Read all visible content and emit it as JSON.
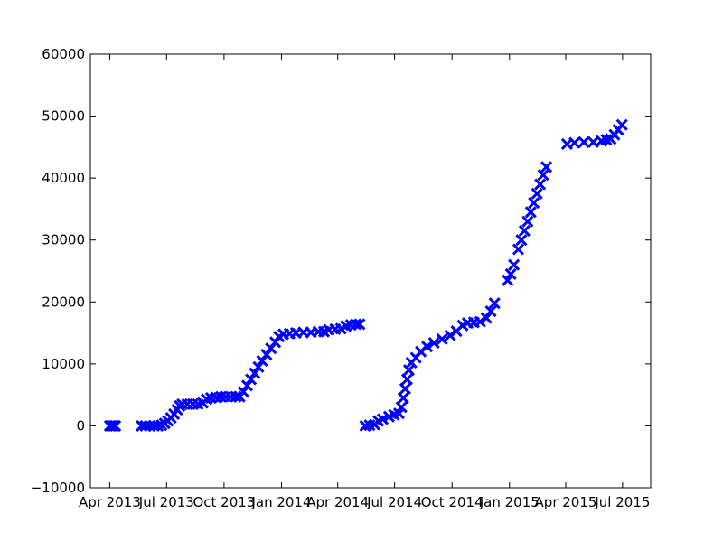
{
  "chart_data": {
    "type": "scatter",
    "marker": "x",
    "marker_color": "#0000ff",
    "grid": false,
    "xlim": [
      "2013-03-01",
      "2015-08-15"
    ],
    "ylim": [
      -10000,
      60000
    ],
    "xticks": [
      {
        "date": "2013-04-01",
        "label": "Apr 2013"
      },
      {
        "date": "2013-07-01",
        "label": "Jul 2013"
      },
      {
        "date": "2013-10-01",
        "label": "Oct 2013"
      },
      {
        "date": "2014-01-01",
        "label": "Jan 2014"
      },
      {
        "date": "2014-04-01",
        "label": "Apr 2014"
      },
      {
        "date": "2014-07-01",
        "label": "Jul 2014"
      },
      {
        "date": "2014-10-01",
        "label": "Oct 2014"
      },
      {
        "date": "2015-01-01",
        "label": "Jan 2015"
      },
      {
        "date": "2015-04-01",
        "label": "Apr 2015"
      },
      {
        "date": "2015-07-01",
        "label": "Jul 2015"
      }
    ],
    "yticks": [
      -10000,
      0,
      10000,
      20000,
      30000,
      40000,
      50000,
      60000
    ],
    "series": [
      {
        "points": [
          [
            "2013-04-01",
            0
          ],
          [
            "2013-04-04",
            0
          ],
          [
            "2013-04-07",
            0
          ],
          [
            "2013-04-10",
            0
          ],
          [
            "2013-05-22",
            0
          ],
          [
            "2013-05-28",
            0
          ],
          [
            "2013-06-04",
            0
          ],
          [
            "2013-06-11",
            0
          ],
          [
            "2013-06-17",
            0
          ],
          [
            "2013-06-23",
            100
          ],
          [
            "2013-06-28",
            400
          ],
          [
            "2013-07-03",
            800
          ],
          [
            "2013-07-08",
            1300
          ],
          [
            "2013-07-13",
            1900
          ],
          [
            "2013-07-18",
            2600
          ],
          [
            "2013-07-22",
            3200
          ],
          [
            "2013-07-26",
            3500
          ],
          [
            "2013-08-03",
            3500
          ],
          [
            "2013-08-12",
            3500
          ],
          [
            "2013-08-20",
            3500
          ],
          [
            "2013-08-28",
            3700
          ],
          [
            "2013-09-03",
            4300
          ],
          [
            "2013-09-10",
            4500
          ],
          [
            "2013-09-18",
            4600
          ],
          [
            "2013-09-26",
            4700
          ],
          [
            "2013-10-04",
            4700
          ],
          [
            "2013-10-12",
            4700
          ],
          [
            "2013-10-20",
            4700
          ],
          [
            "2013-10-26",
            4700
          ],
          [
            "2013-11-01",
            5500
          ],
          [
            "2013-11-07",
            6500
          ],
          [
            "2013-11-13",
            7500
          ],
          [
            "2013-11-19",
            8500
          ],
          [
            "2013-11-25",
            9500
          ],
          [
            "2013-12-01",
            10500
          ],
          [
            "2013-12-08",
            11500
          ],
          [
            "2013-12-15",
            12500
          ],
          [
            "2013-12-22",
            13500
          ],
          [
            "2013-12-28",
            14400
          ],
          [
            "2014-01-04",
            14800
          ],
          [
            "2014-01-14",
            14900
          ],
          [
            "2014-01-24",
            15000
          ],
          [
            "2014-02-05",
            15100
          ],
          [
            "2014-02-17",
            15100
          ],
          [
            "2014-03-01",
            15200
          ],
          [
            "2014-03-10",
            15200
          ],
          [
            "2014-03-18",
            15500
          ],
          [
            "2014-03-28",
            15600
          ],
          [
            "2014-04-06",
            15700
          ],
          [
            "2014-04-14",
            16100
          ],
          [
            "2014-04-22",
            16300
          ],
          [
            "2014-04-30",
            16400
          ],
          [
            "2014-05-06",
            16400
          ]
        ]
      },
      {
        "points": [
          [
            "2014-05-15",
            0
          ],
          [
            "2014-05-22",
            100
          ],
          [
            "2014-05-30",
            200
          ],
          [
            "2014-06-05",
            800
          ],
          [
            "2014-06-12",
            1100
          ],
          [
            "2014-06-22",
            1500
          ],
          [
            "2014-06-30",
            1800
          ],
          [
            "2014-07-08",
            2000
          ],
          [
            "2014-07-12",
            3000
          ],
          [
            "2014-07-15",
            4500
          ],
          [
            "2014-07-18",
            6000
          ],
          [
            "2014-07-21",
            7500
          ],
          [
            "2014-07-24",
            9000
          ],
          [
            "2014-07-28",
            10200
          ],
          [
            "2014-08-04",
            11000
          ],
          [
            "2014-08-12",
            12000
          ],
          [
            "2014-08-22",
            12800
          ],
          [
            "2014-09-02",
            13400
          ],
          [
            "2014-09-15",
            14000
          ],
          [
            "2014-09-28",
            14600
          ],
          [
            "2014-10-08",
            15300
          ],
          [
            "2014-10-18",
            16200
          ],
          [
            "2014-10-26",
            16600
          ],
          [
            "2014-11-05",
            16700
          ],
          [
            "2014-11-15",
            16800
          ],
          [
            "2014-11-25",
            17400
          ],
          [
            "2014-12-02",
            18500
          ],
          [
            "2014-12-08",
            19800
          ],
          [
            "2014-12-29",
            23500
          ],
          [
            "2015-01-03",
            24500
          ],
          [
            "2015-01-08",
            26000
          ],
          [
            "2015-01-15",
            28500
          ],
          [
            "2015-01-20",
            30000
          ],
          [
            "2015-01-25",
            31500
          ],
          [
            "2015-01-30",
            33000
          ],
          [
            "2015-02-04",
            34500
          ],
          [
            "2015-02-09",
            36000
          ],
          [
            "2015-02-14",
            37500
          ],
          [
            "2015-02-19",
            39000
          ],
          [
            "2015-02-24",
            40500
          ],
          [
            "2015-03-01",
            41800
          ],
          [
            "2015-04-03",
            45500
          ],
          [
            "2015-04-15",
            45700
          ],
          [
            "2015-04-30",
            45800
          ],
          [
            "2015-05-15",
            45800
          ],
          [
            "2015-05-28",
            46000
          ],
          [
            "2015-06-05",
            46200
          ],
          [
            "2015-06-12",
            46300
          ],
          [
            "2015-06-18",
            47000
          ],
          [
            "2015-06-24",
            47800
          ],
          [
            "2015-06-30",
            48600
          ]
        ]
      }
    ]
  }
}
